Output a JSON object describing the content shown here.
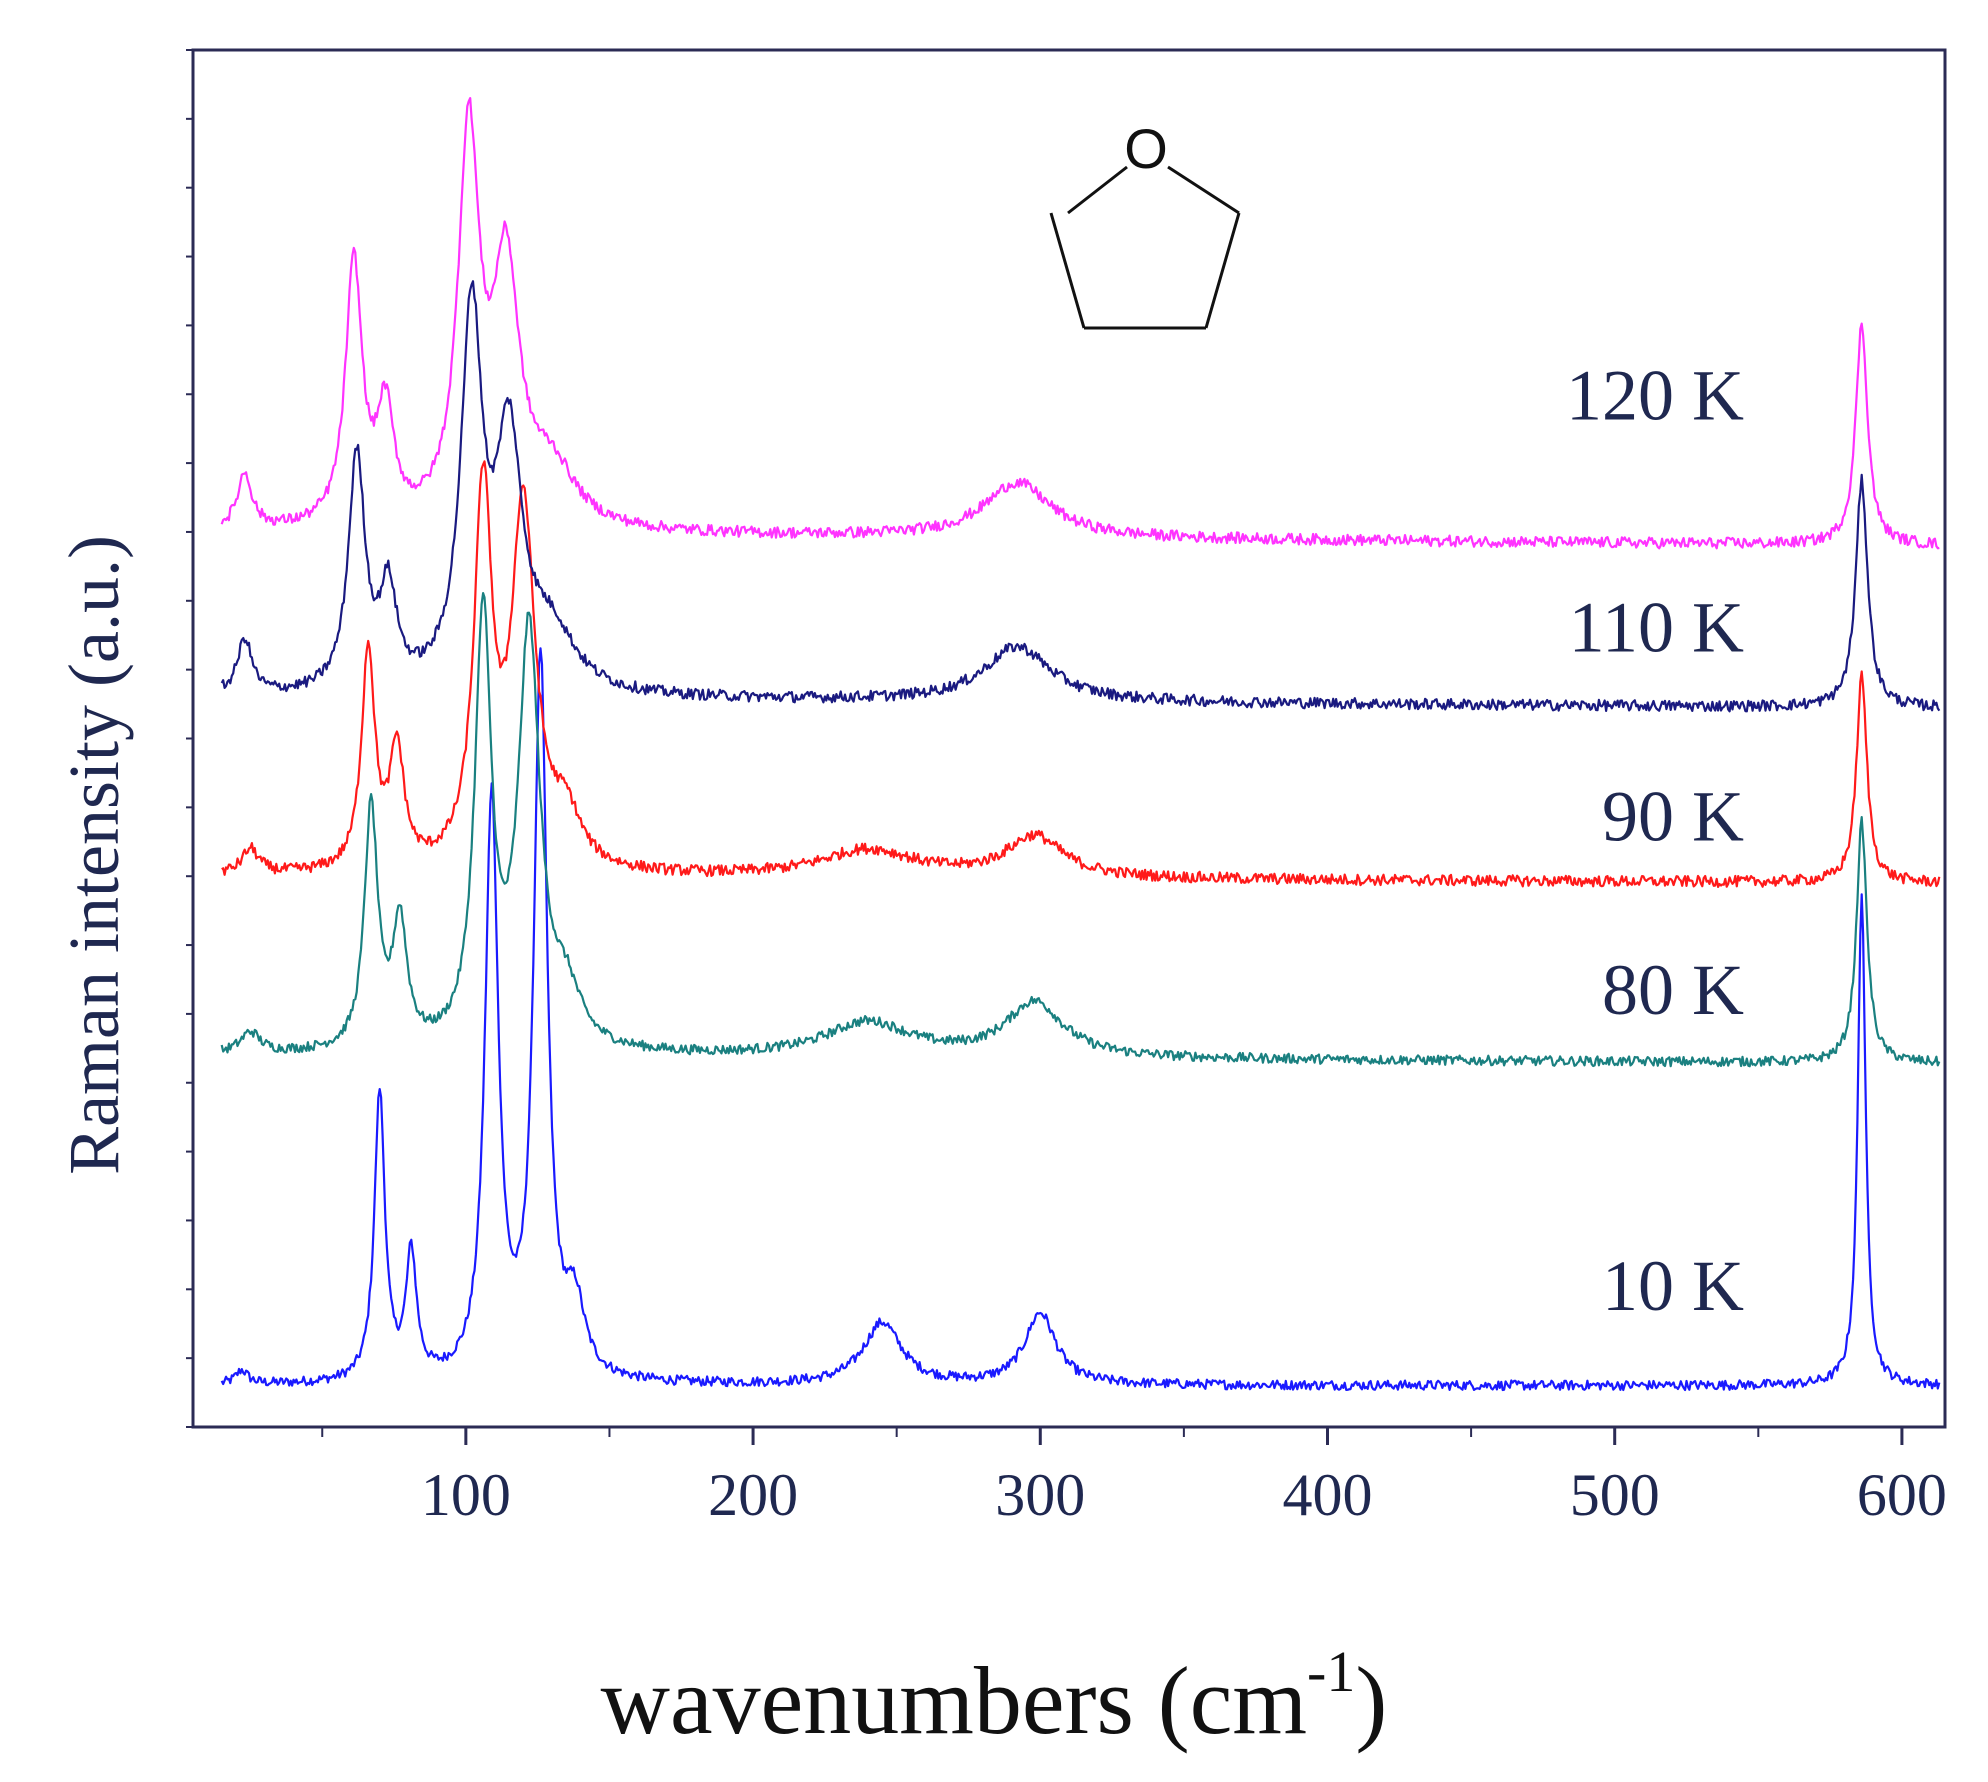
{
  "chart_data": {
    "type": "line",
    "title": "",
    "xlabel": "wavenumbers (cm",
    "xlabel_sup": "-1",
    "xlabel_close": ")",
    "ylabel": "Raman intensity (a.u.)",
    "xlim": [
      5,
      615
    ],
    "ylim": [
      0,
      100
    ],
    "x_ticks": [
      100,
      200,
      300,
      400,
      500,
      600
    ],
    "x_tick_labels": [
      "100",
      "200",
      "300",
      "400",
      "500",
      "600"
    ],
    "x_minor_ticks": [
      50,
      150,
      250,
      350,
      450,
      550
    ],
    "inset": {
      "type": "molecule-structure",
      "name": "tetrahydrofuran",
      "atom_label": "O"
    },
    "series": [
      {
        "name": "10 K",
        "color": "#1a1aff",
        "baseline": 3.0,
        "noise": 0.35,
        "slope": 0.0,
        "peaks": [
          [
            22,
            1.0,
            2.5
          ],
          [
            70,
            21.0,
            2.2
          ],
          [
            81,
            9.0,
            2.2
          ],
          [
            109,
            42.0,
            2.8
          ],
          [
            126,
            52.0,
            2.8
          ],
          [
            138,
            5.0,
            4.0
          ],
          [
            245,
            4.5,
            8.0
          ],
          [
            300,
            5.2,
            6.5
          ],
          [
            586,
            36.0,
            1.6
          ]
        ]
      },
      {
        "name": "80 K",
        "color": "#1a8080",
        "baseline": 27.0,
        "noise": 0.35,
        "slope": -0.6,
        "peaks": [
          [
            25,
            1.5,
            4.0
          ],
          [
            67,
            17.5,
            2.8
          ],
          [
            77,
            9.0,
            3.0
          ],
          [
            106,
            31.0,
            3.5
          ],
          [
            122,
            30.0,
            4.5
          ],
          [
            135,
            3.5,
            6.0
          ],
          [
            240,
            2.5,
            18.0
          ],
          [
            298,
            4.0,
            12.0
          ],
          [
            586,
            17.5,
            2.2
          ]
        ]
      },
      {
        "name": "90 K",
        "color": "#ff1a1a",
        "baseline": 40.0,
        "noise": 0.4,
        "slope": -0.5,
        "peaks": [
          [
            25,
            1.8,
            3.5
          ],
          [
            66,
            16.0,
            2.8
          ],
          [
            76,
            8.5,
            3.0
          ],
          [
            106,
            27.0,
            3.8
          ],
          [
            120,
            26.0,
            5.0
          ],
          [
            135,
            3.5,
            6.0
          ],
          [
            240,
            2.0,
            20.0
          ],
          [
            298,
            3.0,
            12.0
          ],
          [
            586,
            15.0,
            2.2
          ]
        ]
      },
      {
        "name": "110 K",
        "color": "#1a1a80",
        "baseline": 53.0,
        "noise": 0.4,
        "slope": -0.8,
        "peaks": [
          [
            23,
            4.0,
            3.0
          ],
          [
            62,
            17.0,
            3.5
          ],
          [
            73,
            7.0,
            3.5
          ],
          [
            102,
            27.0,
            4.5
          ],
          [
            115,
            17.5,
            5.5
          ],
          [
            130,
            4.0,
            10.0
          ],
          [
            292,
            4.0,
            14.0
          ],
          [
            586,
            16.5,
            2.5
          ]
        ]
      },
      {
        "name": "120 K",
        "color": "#ff33ff",
        "baseline": 65.0,
        "noise": 0.4,
        "slope": -1.0,
        "peaks": [
          [
            23,
            4.0,
            3.0
          ],
          [
            61,
            19.0,
            3.5
          ],
          [
            72,
            8.0,
            3.5
          ],
          [
            101,
            28.0,
            4.5
          ],
          [
            114,
            18.0,
            5.5
          ],
          [
            130,
            4.0,
            10.0
          ],
          [
            292,
            4.0,
            14.0
          ],
          [
            586,
            16.0,
            2.5
          ]
        ]
      }
    ],
    "labels": [
      {
        "series": "120 K",
        "text": "120 K"
      },
      {
        "series": "110 K",
        "text": "110 K"
      },
      {
        "series": "90 K",
        "text": "90 K"
      },
      {
        "series": "80 K",
        "text": "80 K"
      },
      {
        "series": "10 K",
        "text": "10 K"
      }
    ]
  }
}
